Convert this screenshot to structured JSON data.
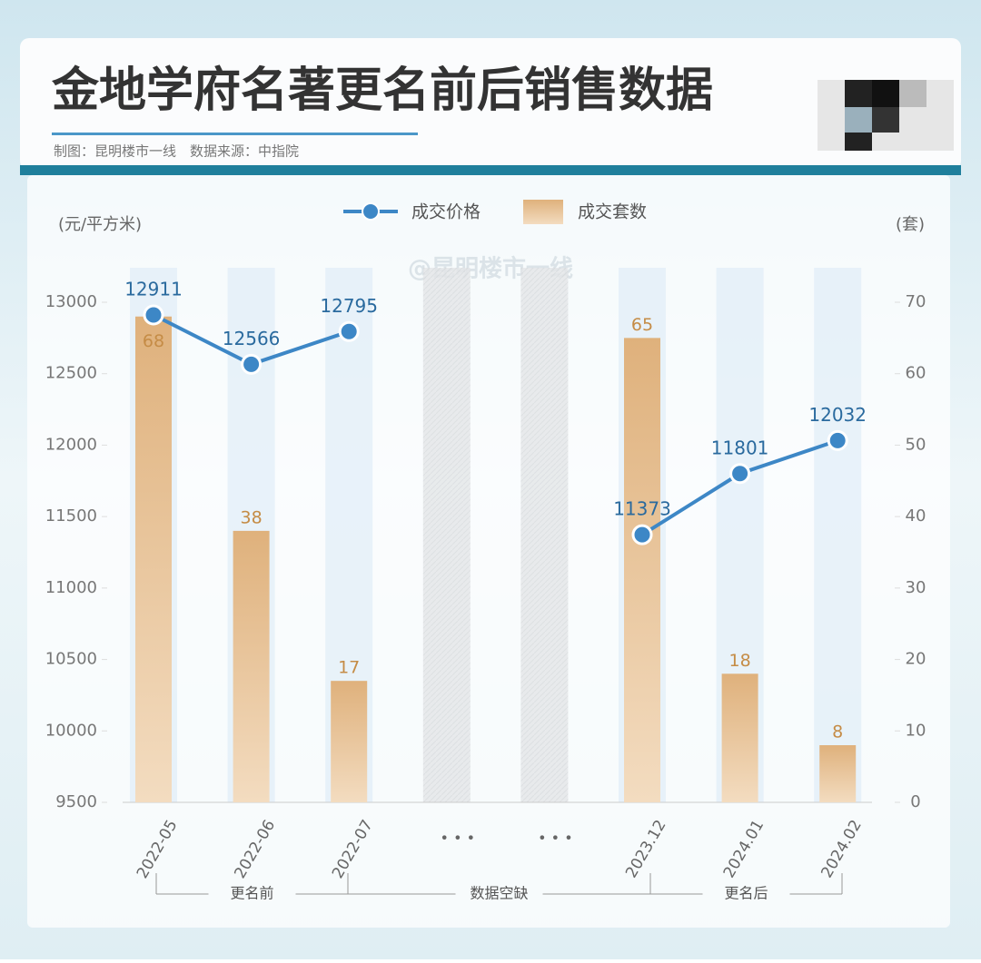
{
  "chart_data": {
    "type": "bar-line",
    "title": "金地学府名著更名前后销售数据",
    "subtitle": "制图：昆明楼市一线　数据来源：中指院",
    "watermark": "@昆明楼市一线",
    "y_label": "(元/平方米)",
    "y2_label": "(套)",
    "categories": [
      "2022-05",
      "2022-06",
      "2022-07",
      null,
      null,
      "2023.12",
      "2024.01",
      "2024.02"
    ],
    "gap_labels": [
      "• • •",
      "• • •"
    ],
    "groups": [
      "更名前",
      "数据空缺",
      "更名后"
    ],
    "series": [
      {
        "name": "成交价格",
        "type": "line",
        "color": "#3d87c6",
        "values": [
          12911,
          12566,
          12795,
          null,
          null,
          11373,
          11801,
          12032
        ]
      },
      {
        "name": "成交套数",
        "type": "bar",
        "axis": "y2",
        "color": "#e2b887",
        "values": [
          68,
          38,
          17,
          null,
          null,
          65,
          18,
          8
        ]
      }
    ],
    "ylim": [
      9500,
      13000
    ],
    "yticks": [
      9500,
      10000,
      10500,
      11000,
      11500,
      12000,
      12500,
      13000
    ],
    "y2lim": [
      0,
      70
    ],
    "y2ticks": [
      0,
      10,
      20,
      30,
      40,
      50,
      60,
      70
    ]
  }
}
